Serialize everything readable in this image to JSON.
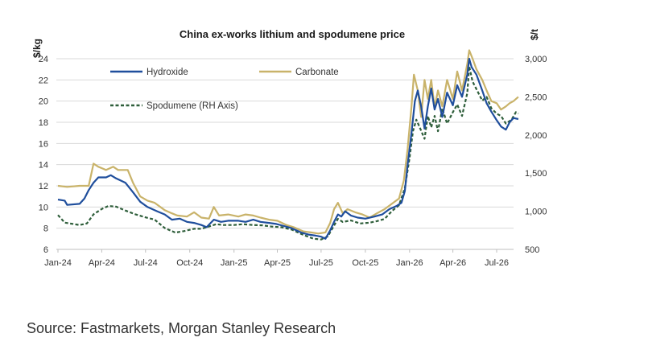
{
  "chart_data": {
    "type": "line",
    "title": "China ex-works lithium and spodumene price",
    "ylabel_left": "$/kg",
    "ylabel_right": "$/t",
    "ylim_left": [
      6,
      24
    ],
    "ylim_right": [
      500,
      3000
    ],
    "left_ticks": [
      6,
      8,
      10,
      12,
      14,
      16,
      18,
      20,
      22,
      24
    ],
    "right_ticks": [
      "500",
      "1,000",
      "1,500",
      "2,000",
      "2,500",
      "3,000"
    ],
    "right_tick_values": [
      500,
      1000,
      1500,
      2000,
      2500,
      3000
    ],
    "x_ticks": [
      "Jan-24",
      "Apr-24",
      "Jul-24",
      "Oct-24",
      "Jan-25",
      "Apr-25",
      "Jul-25",
      "Oct-25",
      "Jan-26",
      "Apr-26",
      "Jul-26"
    ],
    "x_tick_dates": [
      "2024-01-01",
      "2024-04-01",
      "2024-07-01",
      "2024-10-01",
      "2025-01-01",
      "2025-04-01",
      "2025-07-01",
      "2025-10-01",
      "2026-01-01",
      "2026-04-01",
      "2026-07-01"
    ],
    "grid": true,
    "legend": "top-left",
    "series": [
      {
        "name": "Hydroxide",
        "axis": "left",
        "color": "#1f4e9c",
        "style": "solid",
        "points": [
          [
            "2024-01-01",
            10.7
          ],
          [
            "2024-01-15",
            10.6
          ],
          [
            "2024-01-20",
            10.2
          ],
          [
            "2024-02-15",
            10.3
          ],
          [
            "2024-02-25",
            10.8
          ],
          [
            "2024-03-05",
            11.6
          ],
          [
            "2024-03-15",
            12.3
          ],
          [
            "2024-03-25",
            12.8
          ],
          [
            "2024-04-10",
            12.8
          ],
          [
            "2024-04-20",
            13.0
          ],
          [
            "2024-05-01",
            12.7
          ],
          [
            "2024-05-20",
            12.3
          ],
          [
            "2024-06-05",
            11.4
          ],
          [
            "2024-06-20",
            10.5
          ],
          [
            "2024-07-05",
            10.0
          ],
          [
            "2024-07-25",
            9.6
          ],
          [
            "2024-08-10",
            9.3
          ],
          [
            "2024-08-25",
            8.8
          ],
          [
            "2024-09-10",
            8.9
          ],
          [
            "2024-09-25",
            8.6
          ],
          [
            "2024-10-10",
            8.5
          ],
          [
            "2024-10-25",
            8.3
          ],
          [
            "2024-11-05",
            8.1
          ],
          [
            "2024-11-20",
            8.8
          ],
          [
            "2024-12-05",
            8.6
          ],
          [
            "2024-12-20",
            8.7
          ],
          [
            "2025-01-10",
            8.7
          ],
          [
            "2025-01-25",
            8.6
          ],
          [
            "2025-02-10",
            8.8
          ],
          [
            "2025-02-25",
            8.6
          ],
          [
            "2025-03-15",
            8.5
          ],
          [
            "2025-03-30",
            8.4
          ],
          [
            "2025-04-15",
            8.2
          ],
          [
            "2025-05-01",
            8.0
          ],
          [
            "2025-05-20",
            7.6
          ],
          [
            "2025-06-05",
            7.4
          ],
          [
            "2025-06-20",
            7.3
          ],
          [
            "2025-07-01",
            7.2
          ],
          [
            "2025-07-10",
            7.0
          ],
          [
            "2025-07-20",
            7.8
          ],
          [
            "2025-07-28",
            8.6
          ],
          [
            "2025-08-05",
            9.3
          ],
          [
            "2025-08-12",
            9.1
          ],
          [
            "2025-08-20",
            9.6
          ],
          [
            "2025-09-01",
            9.2
          ],
          [
            "2025-09-15",
            9.0
          ],
          [
            "2025-10-01",
            8.9
          ],
          [
            "2025-10-20",
            9.1
          ],
          [
            "2025-11-05",
            9.3
          ],
          [
            "2025-11-20",
            9.8
          ],
          [
            "2025-12-05",
            10.1
          ],
          [
            "2025-12-15",
            10.4
          ],
          [
            "2025-12-22",
            11.5
          ],
          [
            "2025-12-28",
            14.0
          ],
          [
            "2026-01-05",
            17.0
          ],
          [
            "2026-01-12",
            20.0
          ],
          [
            "2026-01-18",
            21.0
          ],
          [
            "2026-01-25",
            19.5
          ],
          [
            "2026-02-01",
            17.4
          ],
          [
            "2026-02-08",
            19.5
          ],
          [
            "2026-02-15",
            21.2
          ],
          [
            "2026-02-22",
            19.2
          ],
          [
            "2026-03-01",
            20.2
          ],
          [
            "2026-03-10",
            18.5
          ],
          [
            "2026-03-20",
            20.8
          ],
          [
            "2026-04-01",
            19.6
          ],
          [
            "2026-04-10",
            21.5
          ],
          [
            "2026-04-20",
            20.4
          ],
          [
            "2026-05-01",
            22.5
          ],
          [
            "2026-05-05",
            24.0
          ],
          [
            "2026-05-10",
            23.2
          ],
          [
            "2026-05-20",
            22.5
          ],
          [
            "2026-06-01",
            21.0
          ],
          [
            "2026-06-10",
            19.8
          ],
          [
            "2026-06-20",
            19.0
          ],
          [
            "2026-07-01",
            18.2
          ],
          [
            "2026-07-10",
            17.6
          ],
          [
            "2026-07-20",
            17.3
          ],
          [
            "2026-07-28",
            18.0
          ],
          [
            "2026-08-05",
            18.4
          ],
          [
            "2026-08-15",
            18.3
          ]
        ]
      },
      {
        "name": "Carbonate",
        "axis": "left",
        "color": "#c9b36a",
        "style": "solid",
        "points": [
          [
            "2024-01-01",
            12.0
          ],
          [
            "2024-01-20",
            11.9
          ],
          [
            "2024-02-15",
            12.0
          ],
          [
            "2024-03-05",
            12.0
          ],
          [
            "2024-03-15",
            14.1
          ],
          [
            "2024-03-25",
            13.8
          ],
          [
            "2024-04-10",
            13.5
          ],
          [
            "2024-04-25",
            13.8
          ],
          [
            "2024-05-05",
            13.5
          ],
          [
            "2024-05-25",
            13.5
          ],
          [
            "2024-06-05",
            12.3
          ],
          [
            "2024-06-20",
            11.0
          ],
          [
            "2024-07-05",
            10.6
          ],
          [
            "2024-07-20",
            10.4
          ],
          [
            "2024-08-10",
            9.7
          ],
          [
            "2024-08-25",
            9.4
          ],
          [
            "2024-09-05",
            9.2
          ],
          [
            "2024-09-25",
            9.1
          ],
          [
            "2024-10-10",
            9.5
          ],
          [
            "2024-10-25",
            9.0
          ],
          [
            "2024-11-10",
            8.9
          ],
          [
            "2024-11-20",
            10.0
          ],
          [
            "2024-12-01",
            9.2
          ],
          [
            "2024-12-20",
            9.3
          ],
          [
            "2025-01-10",
            9.1
          ],
          [
            "2025-01-25",
            9.3
          ],
          [
            "2025-02-10",
            9.2
          ],
          [
            "2025-02-25",
            9.0
          ],
          [
            "2025-03-15",
            8.8
          ],
          [
            "2025-04-01",
            8.7
          ],
          [
            "2025-04-20",
            8.3
          ],
          [
            "2025-05-05",
            8.1
          ],
          [
            "2025-05-25",
            7.7
          ],
          [
            "2025-06-10",
            7.6
          ],
          [
            "2025-06-25",
            7.5
          ],
          [
            "2025-07-10",
            7.6
          ],
          [
            "2025-07-20",
            8.5
          ],
          [
            "2025-07-28",
            9.8
          ],
          [
            "2025-08-05",
            10.4
          ],
          [
            "2025-08-15",
            9.4
          ],
          [
            "2025-08-25",
            9.8
          ],
          [
            "2025-09-10",
            9.5
          ],
          [
            "2025-09-25",
            9.3
          ],
          [
            "2025-10-10",
            9.0
          ],
          [
            "2025-10-25",
            9.4
          ],
          [
            "2025-11-10",
            9.8
          ],
          [
            "2025-11-25",
            10.3
          ],
          [
            "2025-12-10",
            10.8
          ],
          [
            "2025-12-20",
            12.5
          ],
          [
            "2025-12-28",
            15.5
          ],
          [
            "2026-01-05",
            19.5
          ],
          [
            "2026-01-10",
            22.5
          ],
          [
            "2026-01-18",
            21.0
          ],
          [
            "2026-01-25",
            18.5
          ],
          [
            "2026-02-01",
            22.0
          ],
          [
            "2026-02-08",
            20.2
          ],
          [
            "2026-02-15",
            22.0
          ],
          [
            "2026-02-22",
            19.4
          ],
          [
            "2026-03-01",
            21.0
          ],
          [
            "2026-03-10",
            19.5
          ],
          [
            "2026-03-20",
            22.0
          ],
          [
            "2026-04-01",
            20.2
          ],
          [
            "2026-04-10",
            22.8
          ],
          [
            "2026-04-20",
            21.0
          ],
          [
            "2026-05-01",
            23.5
          ],
          [
            "2026-05-05",
            24.8
          ],
          [
            "2026-05-12",
            24.0
          ],
          [
            "2026-05-20",
            23.0
          ],
          [
            "2026-06-01",
            22.0
          ],
          [
            "2026-06-10",
            21.0
          ],
          [
            "2026-06-20",
            20.0
          ],
          [
            "2026-07-01",
            19.8
          ],
          [
            "2026-07-10",
            19.2
          ],
          [
            "2026-07-20",
            19.5
          ],
          [
            "2026-07-28",
            19.8
          ],
          [
            "2026-08-05",
            20.0
          ],
          [
            "2026-08-15",
            20.4
          ]
        ]
      },
      {
        "name": "Spodumene (RH Axis)",
        "axis": "right",
        "color": "#2e5e3a",
        "style": "dashed",
        "points": [
          [
            "2024-01-01",
            950
          ],
          [
            "2024-01-15",
            850
          ],
          [
            "2024-02-15",
            820
          ],
          [
            "2024-03-01",
            840
          ],
          [
            "2024-03-15",
            960
          ],
          [
            "2024-04-01",
            1030
          ],
          [
            "2024-04-15",
            1070
          ],
          [
            "2024-05-01",
            1060
          ],
          [
            "2024-05-20",
            1010
          ],
          [
            "2024-06-10",
            960
          ],
          [
            "2024-07-01",
            920
          ],
          [
            "2024-07-20",
            890
          ],
          [
            "2024-08-10",
            780
          ],
          [
            "2024-09-01",
            720
          ],
          [
            "2024-09-20",
            740
          ],
          [
            "2024-10-10",
            770
          ],
          [
            "2024-10-25",
            770
          ],
          [
            "2024-11-10",
            800
          ],
          [
            "2024-11-25",
            830
          ],
          [
            "2024-12-10",
            820
          ],
          [
            "2025-01-01",
            820
          ],
          [
            "2025-01-20",
            830
          ],
          [
            "2025-02-10",
            820
          ],
          [
            "2025-03-01",
            815
          ],
          [
            "2025-03-20",
            800
          ],
          [
            "2025-04-10",
            790
          ],
          [
            "2025-05-01",
            760
          ],
          [
            "2025-05-25",
            690
          ],
          [
            "2025-06-15",
            640
          ],
          [
            "2025-07-01",
            630
          ],
          [
            "2025-07-15",
            670
          ],
          [
            "2025-07-25",
            780
          ],
          [
            "2025-08-05",
            900
          ],
          [
            "2025-08-15",
            860
          ],
          [
            "2025-09-01",
            880
          ],
          [
            "2025-09-20",
            840
          ],
          [
            "2025-10-10",
            850
          ],
          [
            "2025-10-25",
            870
          ],
          [
            "2025-11-10",
            900
          ],
          [
            "2025-11-25",
            1000
          ],
          [
            "2025-12-10",
            1080
          ],
          [
            "2025-12-22",
            1300
          ],
          [
            "2026-01-01",
            1700
          ],
          [
            "2026-01-08",
            2050
          ],
          [
            "2026-01-15",
            2200
          ],
          [
            "2026-01-22",
            2100
          ],
          [
            "2026-02-01",
            1950
          ],
          [
            "2026-02-08",
            2250
          ],
          [
            "2026-02-15",
            2100
          ],
          [
            "2026-02-22",
            2250
          ],
          [
            "2026-03-01",
            2050
          ],
          [
            "2026-03-10",
            2350
          ],
          [
            "2026-03-20",
            2150
          ],
          [
            "2026-04-01",
            2300
          ],
          [
            "2026-04-10",
            2400
          ],
          [
            "2026-04-20",
            2250
          ],
          [
            "2026-05-01",
            2550
          ],
          [
            "2026-05-05",
            2900
          ],
          [
            "2026-05-12",
            2700
          ],
          [
            "2026-05-20",
            2600
          ],
          [
            "2026-06-01",
            2450
          ],
          [
            "2026-06-10",
            2500
          ],
          [
            "2026-06-20",
            2350
          ],
          [
            "2026-07-01",
            2280
          ],
          [
            "2026-07-10",
            2250
          ],
          [
            "2026-07-20",
            2150
          ],
          [
            "2026-08-01",
            2200
          ],
          [
            "2026-08-10",
            2300
          ],
          [
            "2026-08-15",
            2280
          ]
        ]
      }
    ]
  },
  "source": "Source: Fastmarkets, Morgan Stanley Research"
}
